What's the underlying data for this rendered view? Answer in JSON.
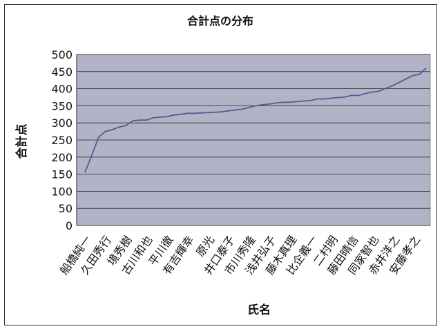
{
  "chart_data": {
    "type": "line",
    "title": "合計点の分布",
    "xlabel": "氏名",
    "ylabel": "合計点",
    "ylim": [
      0,
      500
    ],
    "yticks": [
      0,
      50,
      100,
      150,
      200,
      250,
      300,
      350,
      400,
      450,
      500
    ],
    "grid": "y",
    "legend": "none",
    "colors": {
      "plot_bg": "#b3b3c8",
      "line": "#555a8c",
      "grid": "#222222"
    },
    "tick_labels": [
      "船橋純一",
      "久田秀行",
      "境秀樹",
      "古川和也",
      "平川徹",
      "有吉輝幸",
      "原光",
      "井口泰子",
      "市川秀隆",
      "浅井弘子",
      "藤木真理",
      "比企義一",
      "二村明",
      "藤田晴信",
      "同家智也",
      "赤井洋之",
      "安藤孝之"
    ],
    "values": [
      155,
      205,
      258,
      275,
      280,
      288,
      292,
      306,
      308,
      308,
      315,
      317,
      318,
      323,
      325,
      328,
      328,
      329,
      330,
      331,
      332,
      335,
      338,
      340,
      345,
      350,
      353,
      355,
      358,
      360,
      360,
      362,
      364,
      365,
      370,
      370,
      372,
      374,
      375,
      380,
      380,
      385,
      390,
      392,
      400,
      408,
      418,
      428,
      438,
      442,
      460
    ]
  }
}
